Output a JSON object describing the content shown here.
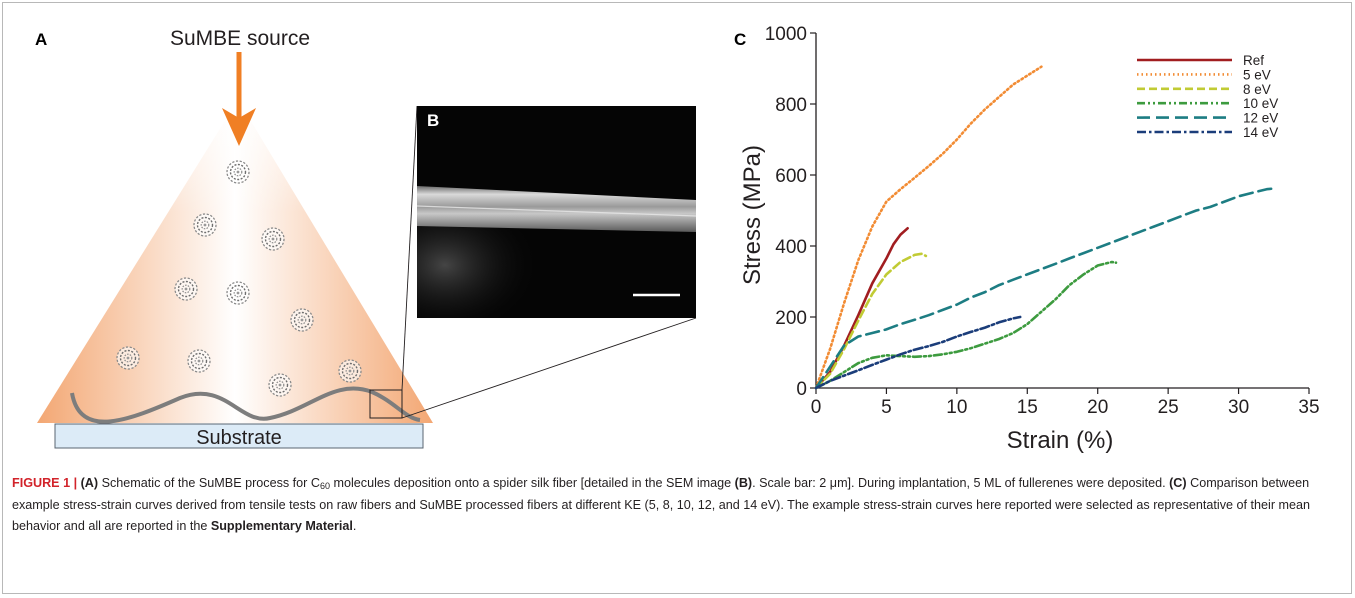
{
  "panel_a": {
    "label": "A",
    "source_label": "SuMBE source",
    "substrate_label": "Substrate",
    "colors": {
      "arrow": "#f07f24",
      "cone": "#f5b07a",
      "substrate": "#dcebf7",
      "fiber": "#7d7d7d"
    },
    "molecule_icon": "fullerene-c60-icon"
  },
  "panel_b": {
    "label": "B",
    "image": "sem-micrograph-silk-fiber",
    "scale_bar": "2 μm"
  },
  "panel_c": {
    "label": "C",
    "chart_data": {
      "type": "line",
      "xlabel": "Strain (%)",
      "ylabel": "Stress (MPa)",
      "xlim": [
        0,
        35
      ],
      "ylim": [
        0,
        1000
      ],
      "x_ticks": [
        0,
        5,
        10,
        15,
        20,
        25,
        30,
        35
      ],
      "y_ticks": [
        0,
        200,
        400,
        600,
        800,
        1000
      ],
      "grid": false,
      "legend_position": "top-right",
      "series": [
        {
          "name": "Ref",
          "color": "#a11d20",
          "dash": "solid",
          "points": [
            [
              0,
              0
            ],
            [
              1,
              45
            ],
            [
              2,
              120
            ],
            [
              3,
              205
            ],
            [
              4,
              295
            ],
            [
              5,
              365
            ],
            [
              5.5,
              405
            ],
            [
              6,
              432
            ],
            [
              6.5,
              450
            ]
          ]
        },
        {
          "name": "5 eV",
          "color": "#f28c34",
          "dash": "dot",
          "points": [
            [
              0,
              0
            ],
            [
              1,
              110
            ],
            [
              2,
              240
            ],
            [
              3,
              360
            ],
            [
              4,
              455
            ],
            [
              5,
              525
            ],
            [
              6,
              560
            ],
            [
              7,
              592
            ],
            [
              8,
              625
            ],
            [
              9,
              660
            ],
            [
              10,
              700
            ],
            [
              11,
              745
            ],
            [
              12,
              785
            ],
            [
              13,
              820
            ],
            [
              14,
              855
            ],
            [
              15,
              880
            ],
            [
              16,
              905
            ]
          ]
        },
        {
          "name": "8 eV",
          "color": "#c1cb34",
          "dash": "dash",
          "points": [
            [
              0,
              0
            ],
            [
              1,
              40
            ],
            [
              2,
              110
            ],
            [
              3,
              190
            ],
            [
              4,
              265
            ],
            [
              5,
              320
            ],
            [
              6,
              355
            ],
            [
              7,
              375
            ],
            [
              7.5,
              378
            ],
            [
              7.8,
              372
            ]
          ]
        },
        {
          "name": "10 eV",
          "color": "#3d9b3f",
          "dash": "dash-dot-dot",
          "points": [
            [
              0,
              0
            ],
            [
              1,
              20
            ],
            [
              2,
              45
            ],
            [
              3,
              70
            ],
            [
              4,
              85
            ],
            [
              5,
              92
            ],
            [
              6,
              90
            ],
            [
              7,
              88
            ],
            [
              8,
              90
            ],
            [
              9,
              95
            ],
            [
              10,
              102
            ],
            [
              11,
              112
            ],
            [
              12,
              125
            ],
            [
              13,
              138
            ],
            [
              14,
              155
            ],
            [
              15,
              180
            ],
            [
              16,
              215
            ],
            [
              17,
              250
            ],
            [
              18,
              290
            ],
            [
              19,
              320
            ],
            [
              20,
              345
            ],
            [
              21,
              355
            ],
            [
              21.3,
              353
            ]
          ]
        },
        {
          "name": "12 eV",
          "color": "#1d7d83",
          "dash": "long-dash",
          "points": [
            [
              0,
              0
            ],
            [
              1,
              60
            ],
            [
              2,
              120
            ],
            [
              3,
              145
            ],
            [
              4,
              155
            ],
            [
              5,
              165
            ],
            [
              6,
              180
            ],
            [
              7,
              192
            ],
            [
              8,
              205
            ],
            [
              9,
              220
            ],
            [
              10,
              235
            ],
            [
              11,
              255
            ],
            [
              12,
              270
            ],
            [
              13,
              290
            ],
            [
              14,
              305
            ],
            [
              15,
              320
            ],
            [
              16,
              335
            ],
            [
              17,
              350
            ],
            [
              18,
              365
            ],
            [
              19,
              380
            ],
            [
              20,
              395
            ],
            [
              21,
              410
            ],
            [
              22,
              425
            ],
            [
              23,
              440
            ],
            [
              24,
              455
            ],
            [
              25,
              470
            ],
            [
              26,
              485
            ],
            [
              27,
              500
            ],
            [
              28,
              510
            ],
            [
              29,
              525
            ],
            [
              30,
              540
            ],
            [
              31,
              550
            ],
            [
              32,
              560
            ],
            [
              32.5,
              562
            ]
          ]
        },
        {
          "name": "14 eV",
          "color": "#1b3d7a",
          "dash": "dash-dot",
          "points": [
            [
              0,
              0
            ],
            [
              1,
              20
            ],
            [
              2,
              35
            ],
            [
              3,
              50
            ],
            [
              4,
              65
            ],
            [
              5,
              80
            ],
            [
              6,
              95
            ],
            [
              7,
              108
            ],
            [
              8,
              118
            ],
            [
              9,
              130
            ],
            [
              10,
              145
            ],
            [
              11,
              158
            ],
            [
              12,
              170
            ],
            [
              13,
              185
            ],
            [
              14,
              196
            ],
            [
              14.5,
              200
            ]
          ]
        }
      ]
    }
  },
  "caption": {
    "figure_label": "FIGURE 1 | ",
    "a_marker": "(A)",
    "t1": " Schematic of the SuMBE process for C",
    "c60_sub": "60",
    "t2": " molecules deposition onto a spider silk fiber [detailed in the SEM image ",
    "b_marker": "(B)",
    "t3": ". Scale bar: 2 μm]. During implantation, 5 ML of fullerenes were deposited. ",
    "c_marker": "(C)",
    "t4": " Comparison between example stress-strain curves derived from tensile tests on raw fibers and SuMBE processed fibers at different KE (5, 8, 10, 12, and 14 eV). The example stress-strain curves here reported were selected as representative of their mean behavior and all are reported in the ",
    "supp_link": "Supplementary Material",
    "t5": "."
  }
}
